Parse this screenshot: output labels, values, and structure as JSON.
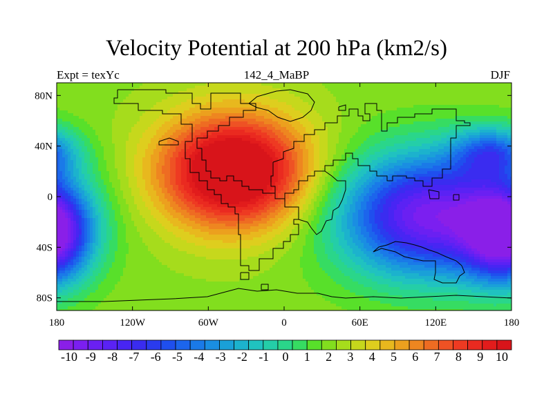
{
  "title": "Velocity Potential at 200 hPa (km2/s)",
  "subtitle_left": "Expt = texYc",
  "subtitle_center": "142_4_MaBP",
  "subtitle_right": "DJF",
  "map": {
    "lon_range": [
      -180,
      180
    ],
    "lat_range": [
      -90,
      90
    ],
    "x_ticks": [
      {
        "value": -180,
        "label": "180"
      },
      {
        "value": -120,
        "label": "120W"
      },
      {
        "value": -60,
        "label": "60W"
      },
      {
        "value": 0,
        "label": "0"
      },
      {
        "value": 60,
        "label": "60E"
      },
      {
        "value": 120,
        "label": "120E"
      },
      {
        "value": 180,
        "label": "180"
      }
    ],
    "y_ticks": [
      {
        "value": 80,
        "label": "80N"
      },
      {
        "value": 40,
        "label": "40N"
      },
      {
        "value": 0,
        "label": "0"
      },
      {
        "value": -40,
        "label": "40S"
      },
      {
        "value": -80,
        "label": "80S"
      }
    ],
    "field_centers": [
      {
        "lon": -40,
        "lat": 20,
        "value": 11,
        "sigma_lon": 42,
        "sigma_lat": 32
      },
      {
        "lon": 115,
        "lat": -15,
        "value": -12,
        "sigma_lon": 50,
        "sigma_lat": 34
      },
      {
        "lon": -185,
        "lat": -30,
        "value": -11,
        "sigma_lon": 22,
        "sigma_lat": 26
      },
      {
        "lon": 165,
        "lat": 35,
        "value": -6,
        "sigma_lon": 22,
        "sigma_lat": 14
      }
    ]
  },
  "colorbar": {
    "colors": [
      "#8a1fe8",
      "#7b1ff0",
      "#6a20f2",
      "#5a22f4",
      "#4825f3",
      "#3a2cf0",
      "#2a3bee",
      "#1f4fee",
      "#1c65ec",
      "#1a7ae8",
      "#1a8ee2",
      "#1aa0d8",
      "#1cb2cd",
      "#20c2c0",
      "#24cea8",
      "#2ad68a",
      "#36dc62",
      "#58e02a",
      "#82de1e",
      "#a6dc1c",
      "#c6d81c",
      "#dece1e",
      "#e8b81e",
      "#eca01e",
      "#ee8620",
      "#ee6c22",
      "#ee5224",
      "#ee3a22",
      "#ea2a20",
      "#e21c1c",
      "#d8141a"
    ],
    "labels": [
      "-10",
      "-9",
      "-8",
      "-7",
      "-6",
      "-5",
      "-4",
      "-3",
      "-2",
      "-1",
      "0",
      "1",
      "2",
      "3",
      "4",
      "5",
      "6",
      "7",
      "8",
      "9",
      "10"
    ]
  }
}
